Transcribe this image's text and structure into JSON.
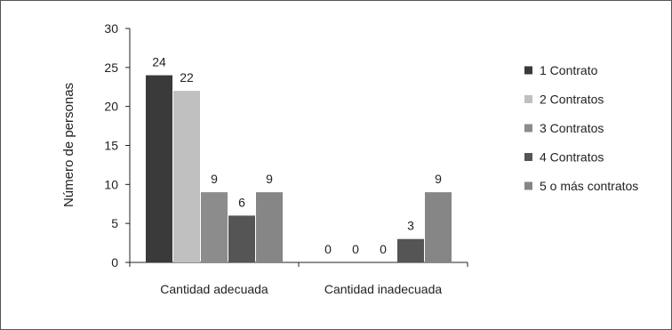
{
  "chart_data": {
    "type": "bar",
    "title": "",
    "xlabel": "",
    "ylabel": "Número de personas",
    "ylim": [
      0,
      30
    ],
    "yticks": [
      0,
      5,
      10,
      15,
      20,
      25,
      30
    ],
    "categories": [
      "Cantidad adecuada",
      "Cantidad inadecuada"
    ],
    "series": [
      {
        "name": "1 Contrato",
        "color": "#3a3a3a",
        "values": [
          24,
          0
        ]
      },
      {
        "name": "2 Contratos",
        "color": "#c0c0c0",
        "values": [
          22,
          0
        ]
      },
      {
        "name": "3 Contratos",
        "color": "#8c8c8c",
        "values": [
          9,
          0
        ]
      },
      {
        "name": "4 Contratos",
        "color": "#555555",
        "values": [
          6,
          3
        ]
      },
      {
        "name": "5 o más contratos",
        "color": "#868686",
        "values": [
          9,
          9
        ]
      }
    ],
    "grid": false,
    "legend": "right",
    "data_labels": true
  }
}
